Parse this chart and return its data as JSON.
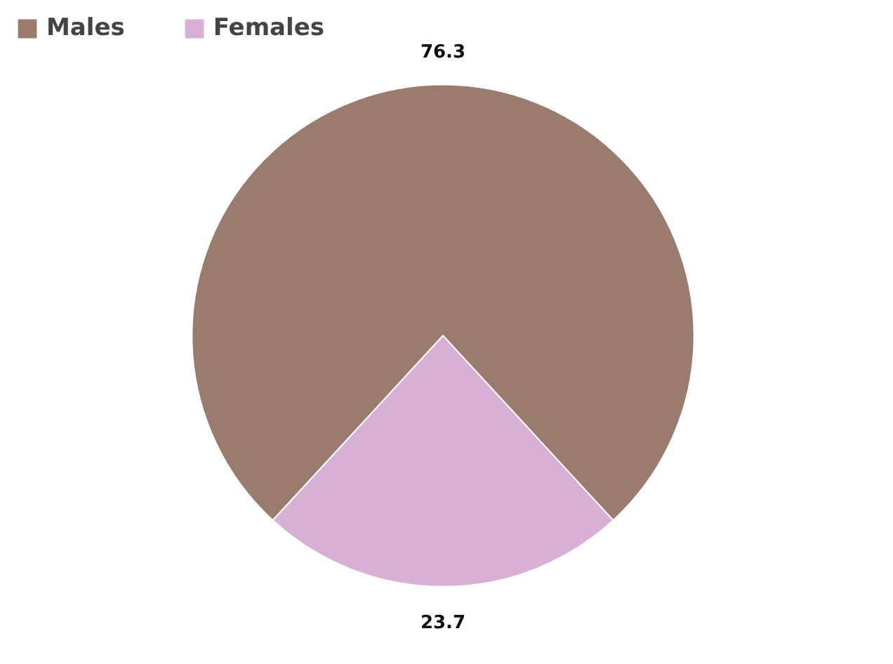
{
  "chart_data": {
    "type": "pie",
    "categories": [
      "Males",
      "Females"
    ],
    "values": [
      76.3,
      23.7
    ],
    "colors": [
      "#9a7b6e",
      "#d8b0d6"
    ],
    "data_labels": true,
    "legend": "top left"
  }
}
